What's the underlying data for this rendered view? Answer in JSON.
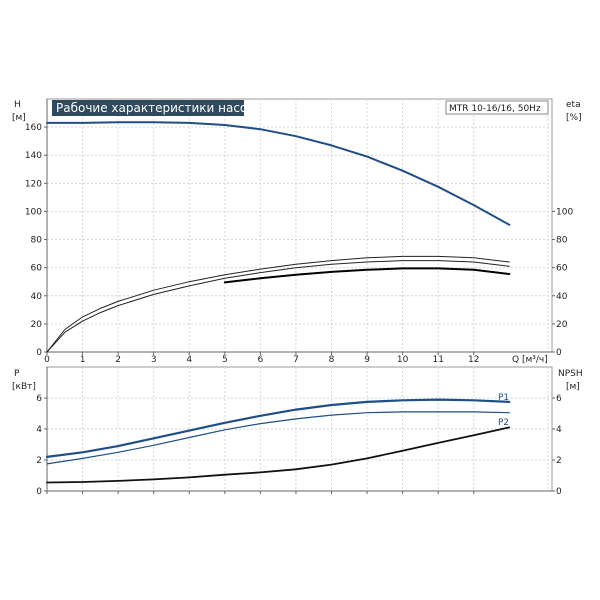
{
  "chart_data": [
    {
      "type": "line",
      "title": "Рабочие характеристики насоса",
      "model_label": "MTR 10-16/16, 50Hz",
      "y_left_label": [
        "H",
        "[м]"
      ],
      "y_right_label": [
        "eta",
        "[%]"
      ],
      "x_label": "Q [м³/ч]",
      "xlim": [
        0,
        14.2
      ],
      "ylim": [
        0,
        180
      ],
      "x_ticks": [
        0,
        1,
        2,
        3,
        4,
        5,
        6,
        7,
        8,
        9,
        10,
        11,
        12
      ],
      "y_ticks": [
        0,
        20,
        40,
        60,
        80,
        100,
        120,
        140,
        160
      ],
      "y_right_ticks": [
        0,
        20,
        40,
        60,
        80,
        100
      ],
      "grid": true,
      "series": [
        {
          "name": "",
          "color": "#1f4f86",
          "x": [
            0,
            1,
            2,
            3,
            4,
            5,
            6,
            7,
            8,
            9,
            10,
            11,
            12,
            13
          ],
          "values": [
            163,
            163,
            163.5,
            163.5,
            163,
            161.5,
            158.5,
            153.5,
            147,
            139,
            129,
            117.5,
            104.5,
            90.5
          ]
        },
        {
          "name": "",
          "color": "#222222",
          "x": [
            0,
            0.5,
            1,
            1.5,
            2,
            3,
            4,
            5,
            6,
            7,
            8,
            9,
            10,
            11,
            12,
            13
          ],
          "values": [
            0,
            14,
            22,
            28,
            33,
            41,
            47,
            52.5,
            56.5,
            60,
            62.5,
            64,
            65,
            65,
            64,
            61
          ]
        },
        {
          "name": "",
          "color": "#222222",
          "x": [
            0,
            0.5,
            1,
            1.5,
            2,
            3,
            4,
            5,
            6,
            7,
            8,
            9,
            10,
            11,
            12,
            13
          ],
          "values": [
            0,
            16,
            25,
            31,
            36,
            44,
            50,
            55,
            59,
            62.5,
            65,
            67,
            68,
            68,
            67,
            64
          ]
        },
        {
          "name": "",
          "color": "#000000",
          "x": [
            5,
            6,
            7,
            8,
            9,
            10,
            11,
            12,
            13
          ],
          "values": [
            49.5,
            52.5,
            55,
            57,
            58.5,
            59.5,
            59.5,
            58.5,
            55.5
          ]
        }
      ]
    },
    {
      "type": "line",
      "y_left_label": [
        "P",
        "[кВт]"
      ],
      "y_right_label": [
        "NPSH",
        "[м]"
      ],
      "xlim": [
        0,
        14.2
      ],
      "ylim": [
        0,
        8
      ],
      "x_ticks": [
        0,
        1,
        2,
        3,
        4,
        5,
        6,
        7,
        8,
        9,
        10,
        11,
        12
      ],
      "y_ticks": [
        0,
        2,
        4,
        6
      ],
      "y_right_ticks": [
        0,
        2,
        4,
        6
      ],
      "grid": true,
      "series": [
        {
          "name": "P1",
          "color": "#1f4f86",
          "x": [
            0,
            1,
            2,
            3,
            4,
            5,
            6,
            7,
            8,
            9,
            10,
            11,
            12,
            13
          ],
          "values": [
            2.2,
            2.5,
            2.9,
            3.4,
            3.9,
            4.4,
            4.85,
            5.25,
            5.55,
            5.75,
            5.85,
            5.9,
            5.85,
            5.75
          ]
        },
        {
          "name": "P2",
          "color": "#1f4f86",
          "x": [
            0,
            1,
            2,
            3,
            4,
            5,
            6,
            7,
            8,
            9,
            10,
            11,
            12,
            13
          ],
          "values": [
            1.75,
            2.1,
            2.5,
            2.95,
            3.45,
            3.95,
            4.35,
            4.65,
            4.9,
            5.05,
            5.1,
            5.1,
            5.1,
            5.05
          ]
        },
        {
          "name": "",
          "color": "#111111",
          "x": [
            0,
            1,
            2,
            3,
            4,
            5,
            6,
            7,
            8,
            9,
            10,
            11,
            12,
            13
          ],
          "values": [
            0.55,
            0.58,
            0.65,
            0.75,
            0.88,
            1.05,
            1.2,
            1.4,
            1.7,
            2.1,
            2.6,
            3.1,
            3.6,
            4.1
          ]
        }
      ]
    }
  ]
}
